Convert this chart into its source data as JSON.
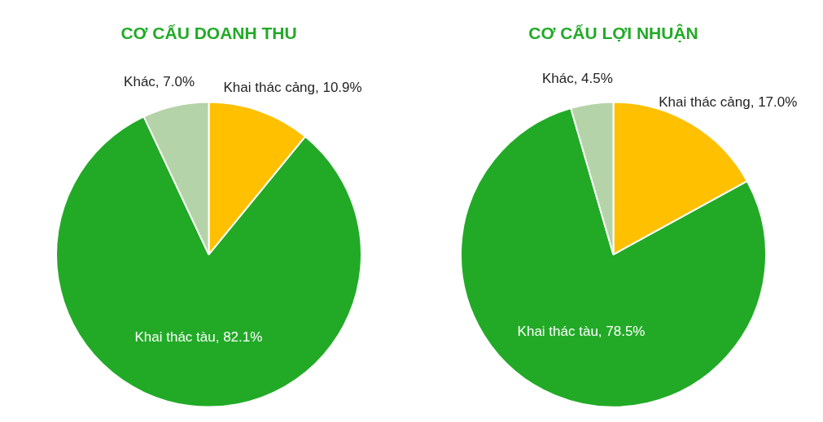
{
  "chart_data": [
    {
      "type": "pie",
      "title": "CƠ CẤU DOANH THU",
      "categories": [
        "Khai thác cảng",
        "Khai thác tàu",
        "Khác"
      ],
      "values": [
        10.9,
        82.1,
        7.0
      ],
      "value_labels": [
        "10.9%",
        "82.1%",
        "7.0%"
      ],
      "colors": [
        "#ffc000",
        "#22aa27",
        "#b5d3a8"
      ],
      "legend": false
    },
    {
      "type": "pie",
      "title": "CƠ CẤU LỢI NHUẬN",
      "categories": [
        "Khai thác cảng",
        "Khai thác tàu",
        "Khác"
      ],
      "values": [
        17.0,
        78.5,
        4.5
      ],
      "value_labels": [
        "17.0%",
        "78.5%",
        "4.5%"
      ],
      "colors": [
        "#ffc000",
        "#22aa27",
        "#b5d3a8"
      ],
      "legend": false
    }
  ]
}
